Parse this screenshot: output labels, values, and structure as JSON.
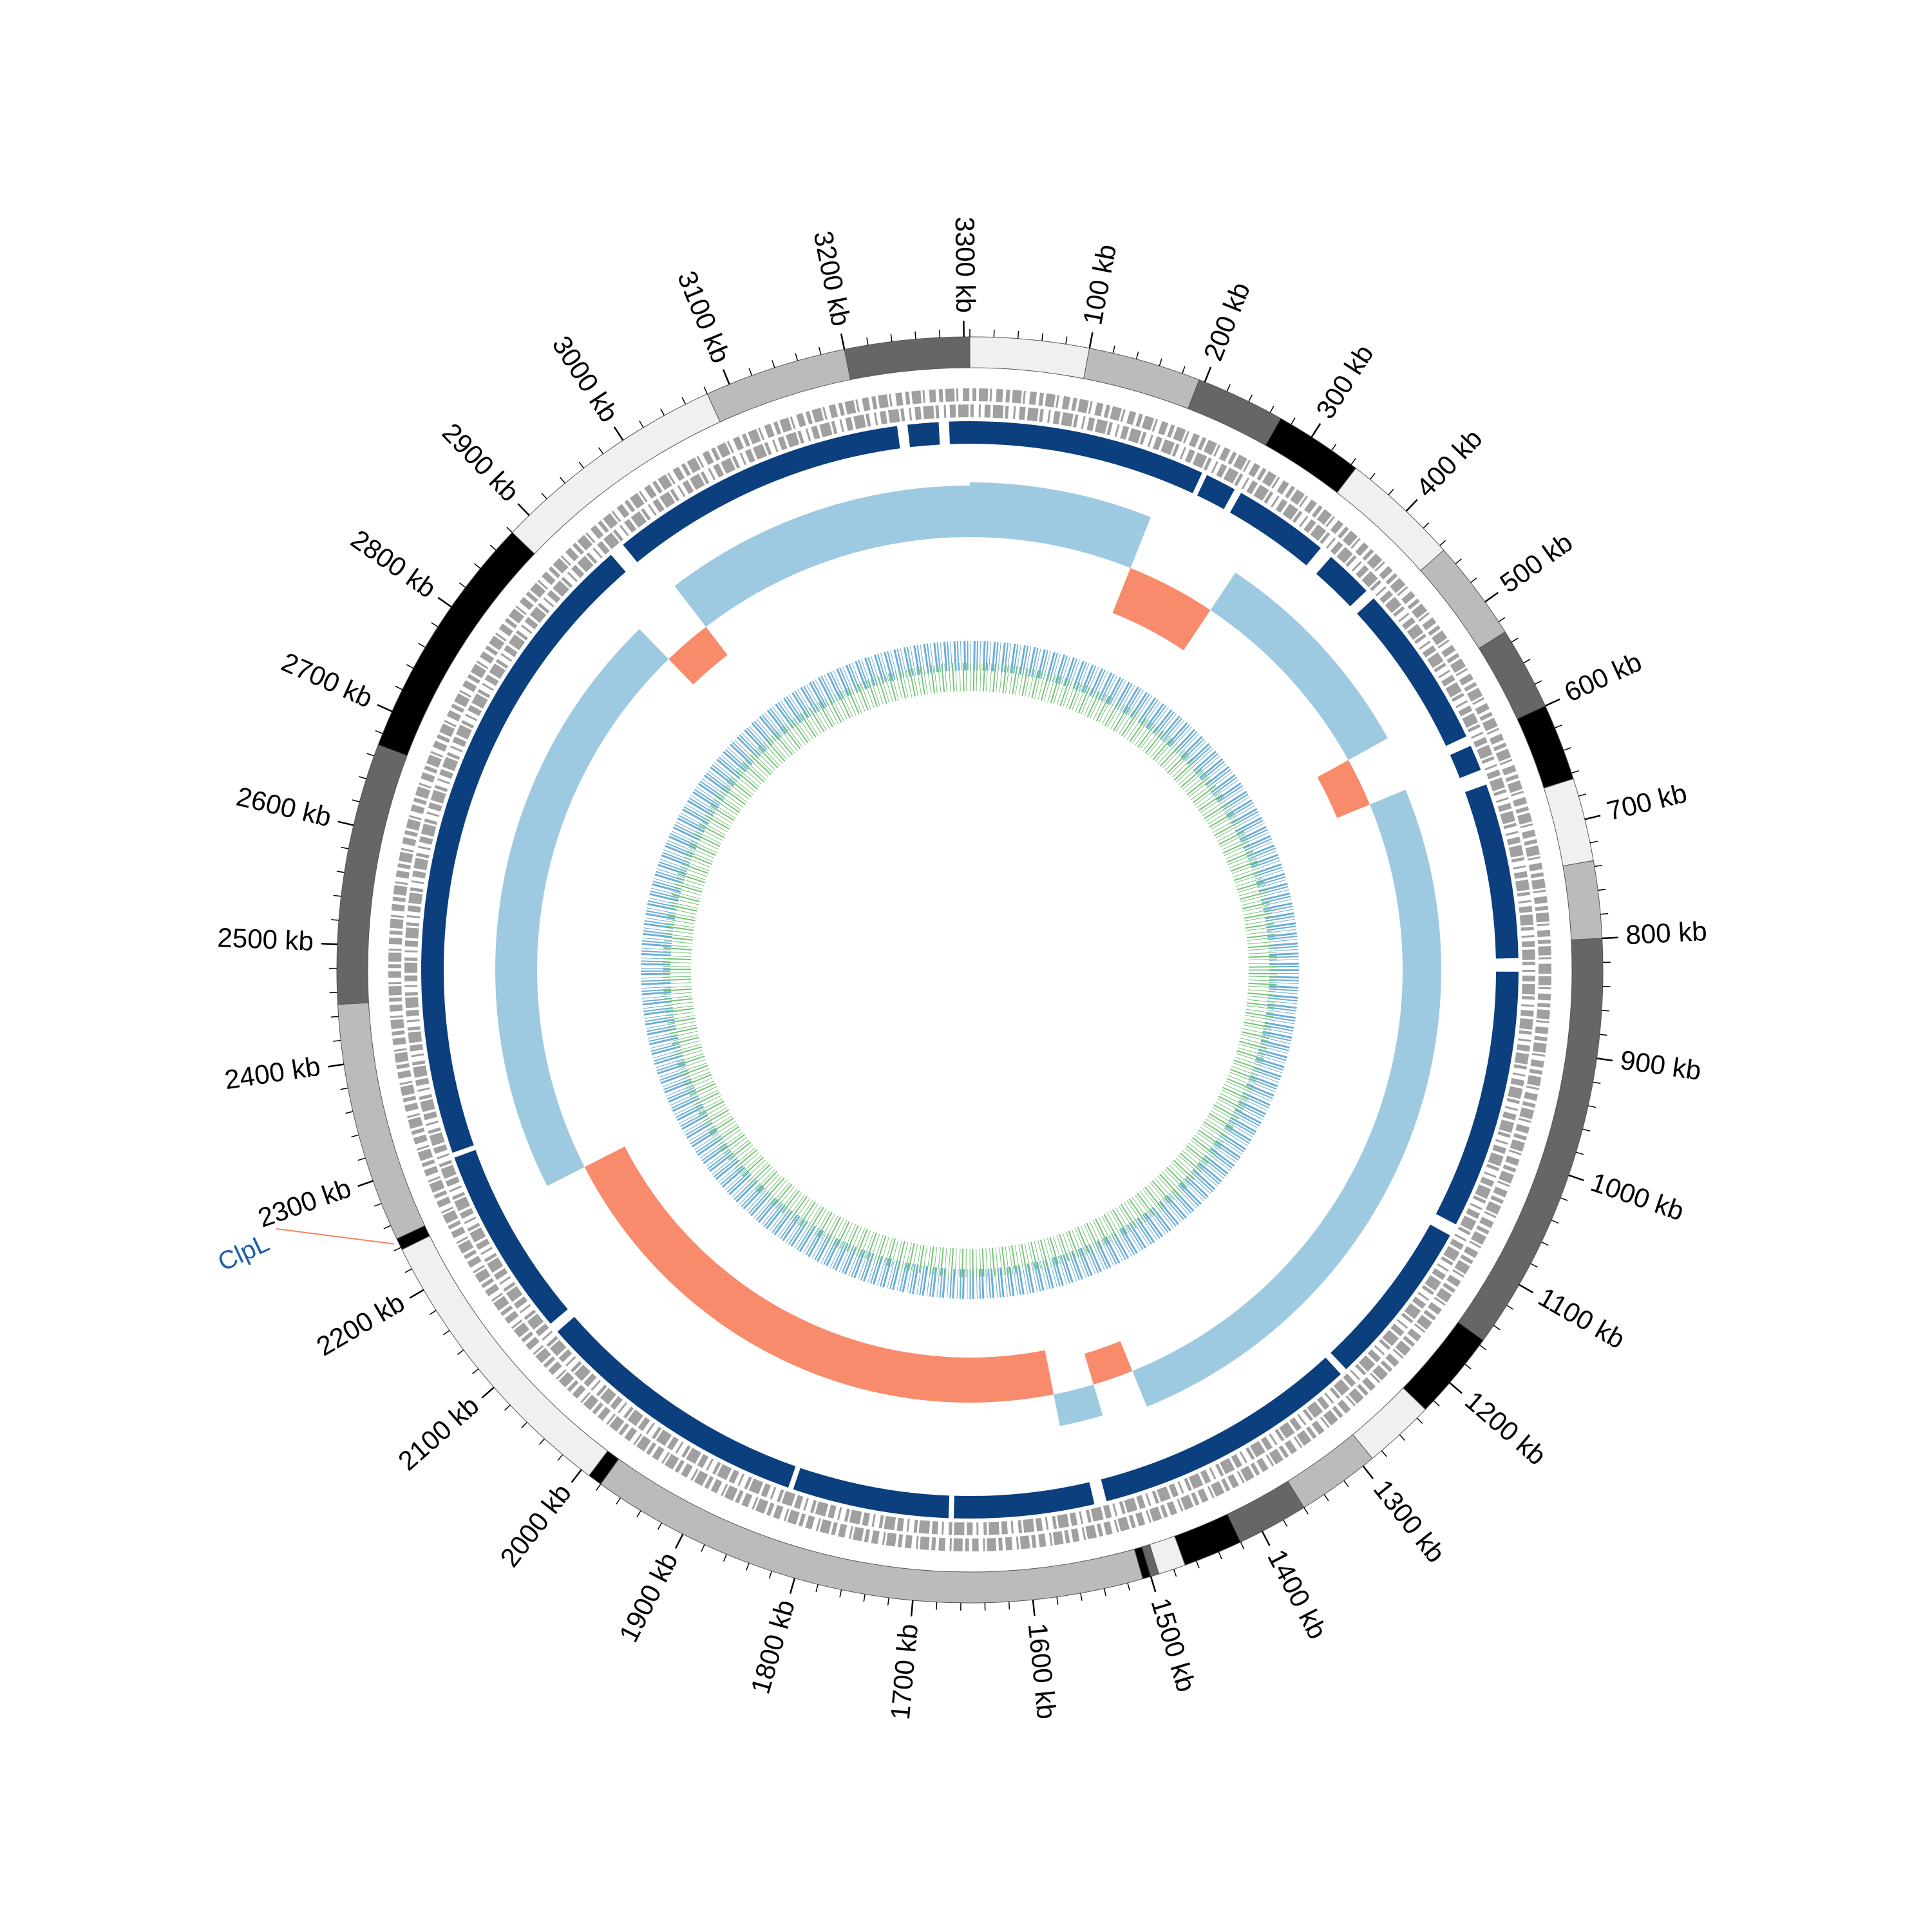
{
  "genome_length_kb": 3305,
  "ticks": [
    {
      "value": 100,
      "label": "100 kb"
    },
    {
      "value": 200,
      "label": "200 kb"
    },
    {
      "value": 300,
      "label": "300 kb"
    },
    {
      "value": 400,
      "label": "400 kb"
    },
    {
      "value": 500,
      "label": "500 kb"
    },
    {
      "value": 600,
      "label": "600 kb"
    },
    {
      "value": 700,
      "label": "700 kb"
    },
    {
      "value": 800,
      "label": "800 kb"
    },
    {
      "value": 900,
      "label": "900 kb"
    },
    {
      "value": 1000,
      "label": "1000 kb"
    },
    {
      "value": 1100,
      "label": "1100 kb"
    },
    {
      "value": 1200,
      "label": "1200 kb"
    },
    {
      "value": 1300,
      "label": "1300 kb"
    },
    {
      "value": 1400,
      "label": "1400 kb"
    },
    {
      "value": 1500,
      "label": "1500 kb"
    },
    {
      "value": 1600,
      "label": "1600 kb"
    },
    {
      "value": 1700,
      "label": "1700 kb"
    },
    {
      "value": 1800,
      "label": "1800 kb"
    },
    {
      "value": 1900,
      "label": "1900 kb"
    },
    {
      "value": 2000,
      "label": "2000 kb"
    },
    {
      "value": 2100,
      "label": "2100 kb"
    },
    {
      "value": 2200,
      "label": "2200 kb"
    },
    {
      "value": 2300,
      "label": "2300 kb"
    },
    {
      "value": 2400,
      "label": "2400 kb"
    },
    {
      "value": 2500,
      "label": "2500 kb"
    },
    {
      "value": 2600,
      "label": "2600 kb"
    },
    {
      "value": 2700,
      "label": "2700 kb"
    },
    {
      "value": 2800,
      "label": "2800 kb"
    },
    {
      "value": 2900,
      "label": "2900 kb"
    },
    {
      "value": 3000,
      "label": "3000 kb"
    },
    {
      "value": 3100,
      "label": "3100 kb"
    },
    {
      "value": 3200,
      "label": "3200 kb"
    },
    {
      "value": 3300,
      "label": "3300 kb"
    }
  ],
  "minor_tick_kb": 20,
  "contigs": [
    {
      "start": 0,
      "end": 100,
      "color": "#f0f0f0"
    },
    {
      "start": 100,
      "end": 195,
      "color": "#bbbbbb"
    },
    {
      "start": 195,
      "end": 270,
      "color": "#666666"
    },
    {
      "start": 270,
      "end": 345,
      "color": "#000000"
    },
    {
      "start": 345,
      "end": 445,
      "color": "#f0f0f0"
    },
    {
      "start": 445,
      "end": 530,
      "color": "#bbbbbb"
    },
    {
      "start": 530,
      "end": 600,
      "color": "#666666"
    },
    {
      "start": 600,
      "end": 665,
      "color": "#000000"
    },
    {
      "start": 665,
      "end": 735,
      "color": "#f0f0f0"
    },
    {
      "start": 735,
      "end": 800,
      "color": "#bbbbbb"
    },
    {
      "start": 800,
      "end": 1155,
      "color": "#666666"
    },
    {
      "start": 1155,
      "end": 1230,
      "color": "#000000"
    },
    {
      "start": 1230,
      "end": 1290,
      "color": "#f0f0f0"
    },
    {
      "start": 1290,
      "end": 1360,
      "color": "#bbbbbb"
    },
    {
      "start": 1360,
      "end": 1420,
      "color": "#666666"
    },
    {
      "start": 1420,
      "end": 1470,
      "color": "#000000"
    },
    {
      "start": 1470,
      "end": 1493,
      "color": "#f0f0f0"
    },
    {
      "start": 1493,
      "end": 1500,
      "color": "#666666"
    },
    {
      "start": 1500,
      "end": 1507,
      "color": "#000000"
    },
    {
      "start": 1507,
      "end": 1980,
      "color": "#bbbbbb"
    },
    {
      "start": 1980,
      "end": 1992,
      "color": "#000000"
    },
    {
      "start": 1992,
      "end": 2238,
      "color": "#f0f0f0"
    },
    {
      "start": 2238,
      "end": 2248,
      "color": "#000000"
    },
    {
      "start": 2248,
      "end": 2450,
      "color": "#bbbbbb"
    },
    {
      "start": 2450,
      "end": 2670,
      "color": "#666666"
    },
    {
      "start": 2670,
      "end": 2880,
      "color": "#000000"
    },
    {
      "start": 2880,
      "end": 3080,
      "color": "#f0f0f0"
    },
    {
      "start": 3080,
      "end": 3200,
      "color": "#bbbbbb"
    },
    {
      "start": 3200,
      "end": 3305,
      "color": "#666666"
    }
  ],
  "blocks": {
    "color": "#0b3f7e",
    "segments": [
      {
        "start": 0,
        "end": 230
      },
      {
        "start": 235,
        "end": 265
      },
      {
        "start": 272,
        "end": 365
      },
      {
        "start": 378,
        "end": 425
      },
      {
        "start": 435,
        "end": 595
      },
      {
        "start": 605,
        "end": 630
      },
      {
        "start": 645,
        "end": 815
      },
      {
        "start": 828,
        "end": 1080
      },
      {
        "start": 1092,
        "end": 1255
      },
      {
        "start": 1262,
        "end": 1520
      },
      {
        "start": 1532,
        "end": 1668
      },
      {
        "start": 1673,
        "end": 1825
      },
      {
        "start": 1830,
        "end": 2100
      },
      {
        "start": 2110,
        "end": 2295
      },
      {
        "start": 2300,
        "end": 2930
      },
      {
        "start": 2945,
        "end": 3235
      },
      {
        "start": 3245,
        "end": 3275
      },
      {
        "start": 3285,
        "end": 3305
      }
    ]
  },
  "skew": {
    "lim": [
      -1,
      1
    ],
    "colors": {
      "positive": "#9ecae1",
      "negative": "#f88b6b"
    },
    "regions": [
      {
        "start": 0,
        "end": 200,
        "value": 0.85
      },
      {
        "start": 200,
        "end": 310,
        "value": -0.75
      },
      {
        "start": 310,
        "end": 560,
        "value": 0.7
      },
      {
        "start": 560,
        "end": 620,
        "value": -0.55
      },
      {
        "start": 620,
        "end": 1450,
        "value": 0.6
      },
      {
        "start": 1450,
        "end": 1500,
        "value": -0.5
      },
      {
        "start": 1500,
        "end": 1550,
        "value": 0.5
      },
      {
        "start": 1550,
        "end": 2230,
        "value": -0.7
      },
      {
        "start": 2230,
        "end": 2900,
        "value": 0.65
      },
      {
        "start": 2900,
        "end": 2960,
        "value": -0.55
      },
      {
        "start": 2960,
        "end": 3305,
        "value": 0.8
      }
    ]
  },
  "annotations": [
    {
      "label": "ClpL",
      "position_kb": 2245
    }
  ]
}
